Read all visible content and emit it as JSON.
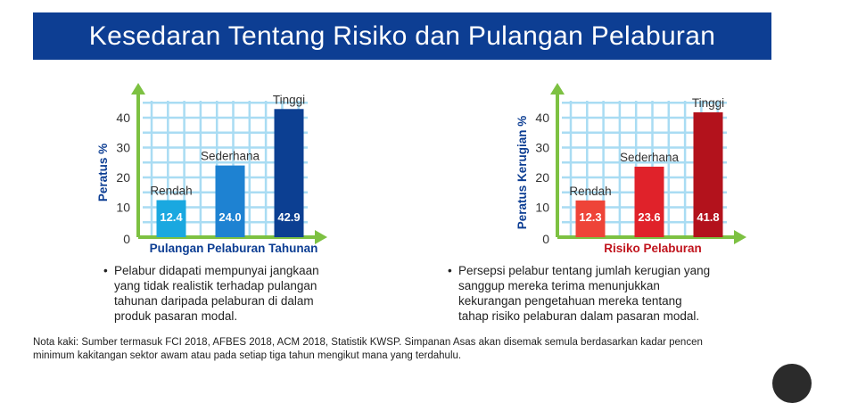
{
  "header": {
    "title": "Kesedaran Tentang Risiko dan Pulangan Pelaburan"
  },
  "colors": {
    "banner": "#0d3e93",
    "grid": "#a9dcf3",
    "axis": "#7dc142",
    "left_label": "#0d3e93",
    "right_label": "#c0141d"
  },
  "chart_data": [
    {
      "type": "bar",
      "categories": [
        "Rendah",
        "Sederhana",
        "Tinggi"
      ],
      "values": [
        12.4,
        24.0,
        42.9
      ],
      "value_labels": [
        "12.4",
        "24.0",
        "42.9"
      ],
      "colors": [
        "#1aa8e0",
        "#1e82d2",
        "#0c3f92"
      ],
      "xlabel": "Pulangan Pelaburan Tahunan",
      "ylabel": "Peratus %",
      "ylim": [
        0,
        40
      ],
      "yticks": [
        "0",
        "10",
        "20",
        "30",
        "40"
      ],
      "grid": true,
      "note": "Pelabur didapati mempunyai jangkaan yang tidak realistik terhadap pulangan tahunan daripada pelaburan di dalam produk pasaran modal."
    },
    {
      "type": "bar",
      "categories": [
        "Rendah",
        "Sederhana",
        "Tinggi"
      ],
      "values": [
        12.3,
        23.6,
        41.8
      ],
      "value_labels": [
        "12.3",
        "23.6",
        "41.8"
      ],
      "colors": [
        "#ee4438",
        "#e0222a",
        "#b3121c"
      ],
      "xlabel": "Risiko Pelaburan",
      "ylabel": "Peratus Kerugian %",
      "ylim": [
        0,
        40
      ],
      "yticks": [
        "0",
        "10",
        "20",
        "30",
        "40"
      ],
      "grid": true,
      "note": "Persepsi pelabur tentang jumlah kerugian yang sanggup mereka terima menunjukkan kekurangan pengetahuan mereka tentang tahap risiko pelaburan dalam pasaran modal."
    }
  ],
  "bullet_symbol": "•",
  "footnote": "Nota kaki: Sumber termasuk FCI 2018, AFBES 2018, ACM 2018, Statistik KWSP. Simpanan Asas akan disemak semula berdasarkan kadar pencen minimum kakitangan sektor awam atau pada setiap tiga tahun mengikut mana yang terdahulu."
}
